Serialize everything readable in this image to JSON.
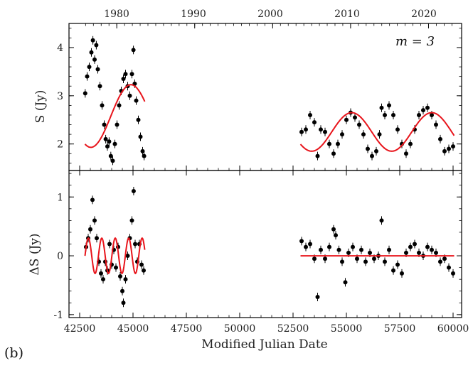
{
  "figure_tag": "(b)",
  "colors": {
    "data": "#000000",
    "model": "#e8141b",
    "frame": "#000000"
  },
  "chart_data": [
    {
      "type": "scatter",
      "panel": "top",
      "title": "",
      "annotation": "m = 3",
      "xlabel": "Modified Julian Date",
      "ylabel": "S (Jy)",
      "xlim": [
        42000,
        60400
      ],
      "ylim": [
        1.45,
        4.5
      ],
      "top_axis_label_values": [
        "1980",
        "1990",
        "2000",
        "2010",
        "2020"
      ],
      "yticks": [
        2,
        3,
        4
      ],
      "series": [
        {
          "name": "observed flux density",
          "style": "black points with error bars",
          "points": [
            [
              42760,
              3.05
            ],
            [
              42850,
              3.4
            ],
            [
              42950,
              3.6
            ],
            [
              43050,
              3.9
            ],
            [
              43120,
              4.15
            ],
            [
              43200,
              3.75
            ],
            [
              43280,
              4.05
            ],
            [
              43350,
              3.55
            ],
            [
              43450,
              3.2
            ],
            [
              43550,
              2.8
            ],
            [
              43650,
              2.4
            ],
            [
              43720,
              2.1
            ],
            [
              43800,
              1.95
            ],
            [
              43880,
              2.05
            ],
            [
              43960,
              1.75
            ],
            [
              44050,
              1.65
            ],
            [
              44150,
              2.0
            ],
            [
              44250,
              2.4
            ],
            [
              44350,
              2.8
            ],
            [
              44450,
              3.1
            ],
            [
              44550,
              3.35
            ],
            [
              44650,
              3.45
            ],
            [
              44750,
              3.2
            ],
            [
              44850,
              3.0
            ],
            [
              44950,
              3.45
            ],
            [
              45020,
              3.95
            ],
            [
              45080,
              3.25
            ],
            [
              45150,
              2.9
            ],
            [
              45250,
              2.5
            ],
            [
              45350,
              2.15
            ],
            [
              45450,
              1.85
            ],
            [
              45520,
              1.75
            ],
            [
              52900,
              2.25
            ],
            [
              53100,
              2.3
            ],
            [
              53300,
              2.6
            ],
            [
              53500,
              2.45
            ],
            [
              53650,
              1.75
            ],
            [
              53800,
              2.3
            ],
            [
              54000,
              2.25
            ],
            [
              54200,
              2.0
            ],
            [
              54400,
              1.8
            ],
            [
              54600,
              2.0
            ],
            [
              54800,
              2.2
            ],
            [
              55000,
              2.5
            ],
            [
              55200,
              2.65
            ],
            [
              55400,
              2.55
            ],
            [
              55600,
              2.4
            ],
            [
              55800,
              2.2
            ],
            [
              56000,
              1.9
            ],
            [
              56200,
              1.75
            ],
            [
              56400,
              1.85
            ],
            [
              56550,
              2.2
            ],
            [
              56650,
              2.75
            ],
            [
              56800,
              2.6
            ],
            [
              57000,
              2.8
            ],
            [
              57200,
              2.6
            ],
            [
              57400,
              2.3
            ],
            [
              57600,
              2.0
            ],
            [
              57800,
              1.8
            ],
            [
              58000,
              2.0
            ],
            [
              58200,
              2.3
            ],
            [
              58400,
              2.6
            ],
            [
              58600,
              2.7
            ],
            [
              58800,
              2.75
            ],
            [
              59000,
              2.6
            ],
            [
              59200,
              2.4
            ],
            [
              59400,
              2.1
            ],
            [
              59600,
              1.85
            ],
            [
              59800,
              1.9
            ],
            [
              60000,
              1.95
            ]
          ]
        },
        {
          "name": "periodic model (m = 3)",
          "style": "red line",
          "segments": [
            {
              "x_start": 42750,
              "x_end": 45550
            },
            {
              "x_start": 52850,
              "x_end": 60050
            }
          ],
          "model": {
            "mean": 2.25,
            "amplitude": 0.4,
            "period": 3750,
            "peak_at": 55250,
            "amplitude_early": 0.65,
            "mean_early": 2.58,
            "peak_early": 44900
          }
        }
      ]
    },
    {
      "type": "scatter",
      "panel": "bottom",
      "xlabel": "Modified Julian Date",
      "ylabel": "ΔS (Jy)",
      "xlim": [
        42000,
        60400
      ],
      "ylim": [
        -1.05,
        1.45
      ],
      "xticks": [
        42500,
        45000,
        47500,
        50000,
        52500,
        55000,
        57500,
        60000
      ],
      "yticks": [
        -1,
        0,
        1
      ],
      "series": [
        {
          "name": "residuals",
          "style": "black points with error bars",
          "points": [
            [
              42800,
              0.15
            ],
            [
              42900,
              0.3
            ],
            [
              43000,
              0.45
            ],
            [
              43100,
              0.95
            ],
            [
              43200,
              0.6
            ],
            [
              43300,
              0.3
            ],
            [
              43400,
              -0.1
            ],
            [
              43500,
              -0.3
            ],
            [
              43600,
              -0.4
            ],
            [
              43700,
              -0.1
            ],
            [
              43800,
              -0.25
            ],
            [
              43900,
              0.2
            ],
            [
              44000,
              -0.15
            ],
            [
              44100,
              0.1
            ],
            [
              44200,
              -0.2
            ],
            [
              44300,
              0.15
            ],
            [
              44400,
              -0.35
            ],
            [
              44500,
              -0.6
            ],
            [
              44550,
              -0.8
            ],
            [
              44650,
              -0.4
            ],
            [
              44750,
              0.0
            ],
            [
              44850,
              0.3
            ],
            [
              44950,
              0.6
            ],
            [
              45030,
              1.1
            ],
            [
              45100,
              0.2
            ],
            [
              45200,
              -0.1
            ],
            [
              45300,
              0.2
            ],
            [
              45400,
              -0.15
            ],
            [
              45500,
              -0.25
            ],
            [
              52900,
              0.25
            ],
            [
              53100,
              0.15
            ],
            [
              53300,
              0.2
            ],
            [
              53500,
              -0.05
            ],
            [
              53650,
              -0.7
            ],
            [
              53800,
              0.1
            ],
            [
              54000,
              -0.05
            ],
            [
              54200,
              0.15
            ],
            [
              54400,
              0.45
            ],
            [
              54500,
              0.35
            ],
            [
              54650,
              0.1
            ],
            [
              54800,
              -0.1
            ],
            [
              54950,
              -0.45
            ],
            [
              55100,
              0.05
            ],
            [
              55300,
              0.15
            ],
            [
              55500,
              -0.05
            ],
            [
              55700,
              0.1
            ],
            [
              55900,
              -0.1
            ],
            [
              56100,
              0.05
            ],
            [
              56300,
              -0.05
            ],
            [
              56500,
              0.0
            ],
            [
              56650,
              0.6
            ],
            [
              56800,
              -0.1
            ],
            [
              57000,
              0.1
            ],
            [
              57200,
              -0.25
            ],
            [
              57400,
              -0.15
            ],
            [
              57600,
              -0.3
            ],
            [
              57800,
              0.05
            ],
            [
              58000,
              0.15
            ],
            [
              58200,
              0.2
            ],
            [
              58400,
              0.05
            ],
            [
              58600,
              0.0
            ],
            [
              58800,
              0.15
            ],
            [
              59000,
              0.1
            ],
            [
              59200,
              0.05
            ],
            [
              59400,
              -0.1
            ],
            [
              59600,
              -0.05
            ],
            [
              59800,
              -0.2
            ],
            [
              60000,
              -0.3
            ]
          ]
        },
        {
          "name": "residual model",
          "style": "red line",
          "segments": [
            {
              "x_start": 42750,
              "x_end": 45550,
              "amplitude": 0.3,
              "period": 630
            },
            {
              "x_start": 52850,
              "x_end": 60050,
              "amplitude": 0.0,
              "period": 1
            }
          ]
        }
      ]
    }
  ]
}
